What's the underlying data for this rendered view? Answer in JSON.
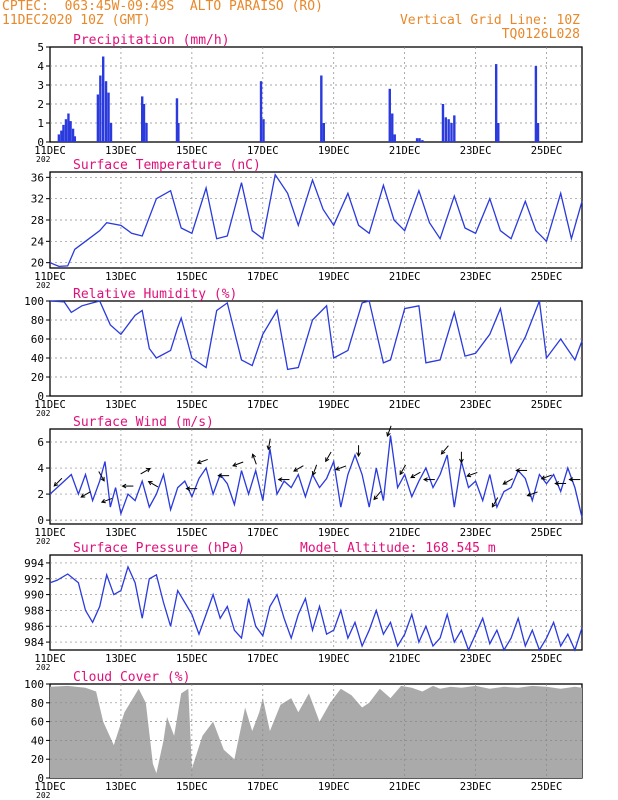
{
  "header": {
    "station_line": "CPTEC:  063:45W-09:49S  ALTO PARAISO (RO)",
    "date_line": "11DEC2020 10Z (GMT)",
    "grid_line": "Vertical Grid Line: 10Z",
    "code_line": "TQ0126L028"
  },
  "colors": {
    "series": "#2a3adc",
    "title": "#e0107a",
    "header": "#e8882a",
    "cloud": "#aaaaaa",
    "grid": "#888888"
  },
  "x_axis": {
    "ticks": [
      "11DEC",
      "13DEC",
      "15DEC",
      "17DEC",
      "19DEC",
      "21DEC",
      "23DEC",
      "25DEC"
    ],
    "tick_days": [
      0,
      2,
      4,
      6,
      8,
      10,
      12,
      14
    ],
    "year_fragment": "202",
    "range_days": [
      0,
      15
    ]
  },
  "chart_data": [
    {
      "type": "bar",
      "title": "Precipitation (mm/h)",
      "ylim": [
        0,
        5
      ],
      "yticks": [
        0,
        1,
        2,
        3,
        4,
        5
      ],
      "x_days": [
        0.25,
        0.32,
        0.38,
        0.45,
        0.52,
        0.58,
        0.65,
        0.7,
        1.35,
        1.42,
        1.5,
        1.58,
        1.65,
        1.72,
        2.6,
        2.65,
        2.72,
        3.58,
        3.62,
        5.95,
        6.02,
        7.65,
        7.72,
        9.58,
        9.65,
        9.72,
        10.35,
        10.42,
        10.5,
        11.08,
        11.16,
        11.24,
        11.32,
        11.4,
        12.58,
        12.64,
        13.7,
        13.76
      ],
      "values": [
        0.4,
        0.6,
        0.9,
        1.2,
        1.5,
        1.1,
        0.7,
        0.3,
        2.5,
        3.5,
        4.5,
        3.2,
        2.6,
        1.0,
        2.4,
        2.0,
        1.0,
        2.3,
        1.0,
        3.2,
        1.2,
        3.5,
        1.0,
        2.8,
        1.5,
        0.4,
        0.2,
        0.2,
        0.1,
        2.0,
        1.3,
        1.2,
        1.0,
        1.4,
        4.1,
        1.0,
        4.0,
        1.0
      ]
    },
    {
      "type": "line",
      "title": "Surface Temperature (nC)",
      "ylim": [
        19,
        37
      ],
      "yticks": [
        20,
        24,
        28,
        32,
        36
      ],
      "x_days": [
        0,
        0.25,
        0.5,
        0.7,
        1.0,
        1.4,
        1.6,
        2.0,
        2.3,
        2.6,
        3.0,
        3.4,
        3.7,
        4.0,
        4.4,
        4.7,
        5.0,
        5.4,
        5.7,
        6.0,
        6.35,
        6.7,
        7.0,
        7.4,
        7.7,
        8.0,
        8.4,
        8.7,
        9.0,
        9.4,
        9.7,
        10.0,
        10.4,
        10.7,
        11.0,
        11.4,
        11.7,
        12.0,
        12.4,
        12.7,
        13.0,
        13.4,
        13.7,
        14.0,
        14.4,
        14.7,
        15.0
      ],
      "values": [
        20.0,
        19.3,
        19.4,
        22.5,
        24.0,
        26.0,
        27.5,
        27.0,
        25.5,
        25.0,
        32.0,
        33.5,
        26.5,
        25.5,
        34.0,
        24.5,
        25.0,
        35.0,
        26.0,
        24.5,
        36.5,
        33.0,
        27.0,
        35.5,
        30.0,
        27.0,
        33.0,
        27.0,
        25.5,
        34.5,
        28.0,
        26.0,
        33.5,
        27.5,
        24.5,
        32.5,
        26.5,
        25.5,
        32.0,
        26.0,
        24.5,
        31.5,
        26.0,
        24.0,
        33.0,
        24.5,
        31.5
      ]
    },
    {
      "type": "line",
      "title": "Relative Humidity (%)",
      "ylim": [
        0,
        100
      ],
      "yticks": [
        0,
        20,
        40,
        60,
        80,
        100
      ],
      "x_days": [
        0,
        0.4,
        0.6,
        0.9,
        1.2,
        1.4,
        1.7,
        2.0,
        2.4,
        2.6,
        2.8,
        3.0,
        3.4,
        3.6,
        3.7,
        4.0,
        4.4,
        4.7,
        5.0,
        5.4,
        5.7,
        6.0,
        6.4,
        6.7,
        7.0,
        7.4,
        7.8,
        8.0,
        8.4,
        8.8,
        9.0,
        9.4,
        9.6,
        10.0,
        10.4,
        10.6,
        11.0,
        11.4,
        11.7,
        12.0,
        12.4,
        12.7,
        13.0,
        13.4,
        13.8,
        14.0,
        14.4,
        14.8,
        15.0
      ],
      "values": [
        100,
        99,
        88,
        95,
        98,
        100,
        75,
        65,
        85,
        90,
        50,
        40,
        48,
        72,
        82,
        40,
        30,
        90,
        98,
        38,
        32,
        65,
        90,
        28,
        30,
        80,
        95,
        40,
        48,
        98,
        100,
        35,
        38,
        92,
        95,
        35,
        38,
        88,
        42,
        45,
        65,
        92,
        35,
        62,
        100,
        40,
        60,
        38,
        58
      ]
    },
    {
      "type": "line",
      "title": "Surface Wind (m/s)",
      "ylim": [
        -0.3,
        7
      ],
      "yticks": [
        0,
        2,
        4,
        6
      ],
      "x_days": [
        0,
        0.2,
        0.4,
        0.6,
        0.8,
        1.0,
        1.2,
        1.4,
        1.55,
        1.7,
        1.85,
        2.0,
        2.2,
        2.4,
        2.6,
        2.8,
        3.0,
        3.2,
        3.4,
        3.6,
        3.8,
        4.0,
        4.2,
        4.4,
        4.6,
        4.8,
        5.0,
        5.2,
        5.4,
        5.6,
        5.8,
        6.0,
        6.2,
        6.4,
        6.6,
        6.8,
        7.0,
        7.2,
        7.4,
        7.6,
        7.8,
        8.0,
        8.2,
        8.4,
        8.6,
        8.8,
        9.0,
        9.2,
        9.4,
        9.6,
        9.8,
        10.0,
        10.2,
        10.4,
        10.6,
        10.8,
        11.0,
        11.2,
        11.4,
        11.6,
        11.8,
        12.0,
        12.2,
        12.4,
        12.6,
        12.8,
        13.0,
        13.2,
        13.4,
        13.6,
        13.8,
        14.0,
        14.2,
        14.4,
        14.6,
        14.8,
        15.0
      ],
      "values": [
        2.0,
        2.5,
        3.0,
        3.5,
        2.0,
        3.5,
        1.5,
        3.0,
        4.5,
        1.0,
        2.5,
        0.5,
        2.0,
        1.5,
        3.0,
        1.0,
        2.0,
        3.5,
        0.8,
        2.5,
        3.0,
        1.8,
        3.2,
        4.0,
        2.0,
        3.5,
        2.8,
        1.2,
        3.8,
        2.0,
        3.8,
        1.5,
        5.5,
        2.0,
        3.0,
        2.5,
        3.5,
        1.8,
        3.5,
        2.5,
        3.2,
        4.5,
        1.0,
        3.5,
        5.0,
        3.5,
        1.0,
        4.0,
        1.5,
        6.5,
        2.5,
        3.5,
        1.8,
        3.0,
        4.0,
        2.5,
        3.5,
        5.0,
        1.0,
        4.5,
        2.5,
        3.0,
        1.5,
        3.5,
        1.0,
        2.2,
        2.5,
        3.8,
        3.2,
        1.5,
        3.5,
        2.8,
        3.5,
        2.2,
        4.0,
        2.5,
        0.2
      ],
      "arrows_x_days": [
        0.3,
        1.1,
        1.4,
        1.7,
        2.3,
        2.6,
        3.0,
        4.1,
        4.4,
        5.0,
        5.4,
        5.8,
        6.2,
        6.7,
        7.1,
        7.5,
        7.9,
        8.3,
        8.7,
        9.3,
        9.6,
        10.0,
        10.4,
        10.8,
        11.2,
        11.6,
        12.0,
        12.6,
        13.0,
        13.4,
        13.7,
        14.1,
        14.5,
        14.9
      ],
      "arrows_angle_deg": [
        225,
        210,
        300,
        200,
        180,
        30,
        150,
        180,
        200,
        180,
        200,
        110,
        260,
        180,
        210,
        250,
        240,
        200,
        270,
        230,
        250,
        240,
        210,
        180,
        230,
        270,
        200,
        240,
        210,
        180,
        200,
        200,
        180,
        180
      ]
    },
    {
      "type": "line",
      "title": "Surface Pressure (hPa)",
      "subtitle": "Model Altitude: 168.545 m",
      "ylim": [
        983,
        995
      ],
      "yticks": [
        984,
        986,
        988,
        990,
        992,
        994
      ],
      "x_days": [
        0,
        0.2,
        0.5,
        0.8,
        1.0,
        1.2,
        1.4,
        1.6,
        1.8,
        2.0,
        2.2,
        2.4,
        2.6,
        2.8,
        3.0,
        3.2,
        3.4,
        3.6,
        3.8,
        4.0,
        4.2,
        4.4,
        4.6,
        4.8,
        5.0,
        5.2,
        5.4,
        5.6,
        5.8,
        6.0,
        6.2,
        6.4,
        6.6,
        6.8,
        7.0,
        7.2,
        7.4,
        7.6,
        7.8,
        8.0,
        8.2,
        8.4,
        8.6,
        8.8,
        9.0,
        9.2,
        9.4,
        9.6,
        9.8,
        10.0,
        10.2,
        10.4,
        10.6,
        10.8,
        11.0,
        11.2,
        11.4,
        11.6,
        11.8,
        12.0,
        12.2,
        12.4,
        12.6,
        12.8,
        13.0,
        13.2,
        13.4,
        13.6,
        13.8,
        14.0,
        14.2,
        14.4,
        14.6,
        14.8,
        15.0
      ],
      "values": [
        991.5,
        991.8,
        992.6,
        991.5,
        988.0,
        986.5,
        988.5,
        992.5,
        990.0,
        990.5,
        993.5,
        991.5,
        987.0,
        992.0,
        992.5,
        989.0,
        986.0,
        990.5,
        989.0,
        987.5,
        985.0,
        987.5,
        990.0,
        987.0,
        988.5,
        985.5,
        984.5,
        989.5,
        986.0,
        984.8,
        988.5,
        990.0,
        987.0,
        984.5,
        987.5,
        989.5,
        985.5,
        988.5,
        985.0,
        985.5,
        988.0,
        984.5,
        986.5,
        983.5,
        985.5,
        988.0,
        985.0,
        986.5,
        983.5,
        985.0,
        987.5,
        984.0,
        986.0,
        983.5,
        984.5,
        987.5,
        984.0,
        985.5,
        983.0,
        985.0,
        987.0,
        983.8,
        985.5,
        983.0,
        984.5,
        987.0,
        983.5,
        985.5,
        983.0,
        984.5,
        986.5,
        983.5,
        985.0,
        983.0,
        985.8
      ]
    },
    {
      "type": "area",
      "title": "Cloud Cover (%)",
      "ylim": [
        0,
        100
      ],
      "yticks": [
        0,
        20,
        40,
        60,
        80,
        100
      ],
      "x_days": [
        0,
        0.5,
        1.0,
        1.3,
        1.5,
        1.8,
        2.1,
        2.5,
        2.7,
        2.9,
        3.0,
        3.2,
        3.3,
        3.5,
        3.7,
        3.9,
        4.0,
        4.3,
        4.6,
        4.9,
        5.2,
        5.5,
        5.7,
        5.9,
        6.0,
        6.2,
        6.5,
        6.8,
        7.0,
        7.3,
        7.6,
        7.9,
        8.2,
        8.5,
        8.8,
        9.0,
        9.3,
        9.6,
        9.9,
        10.2,
        10.5,
        10.8,
        11.0,
        11.3,
        11.6,
        12.0,
        12.4,
        12.8,
        13.2,
        13.6,
        14.0,
        14.4,
        14.8,
        15.0
      ],
      "values": [
        97,
        98,
        96,
        92,
        60,
        35,
        70,
        95,
        80,
        15,
        5,
        40,
        65,
        45,
        90,
        95,
        10,
        45,
        60,
        30,
        20,
        75,
        50,
        70,
        85,
        50,
        78,
        85,
        70,
        90,
        60,
        80,
        95,
        88,
        75,
        80,
        95,
        85,
        98,
        96,
        92,
        98,
        95,
        97,
        96,
        98,
        95,
        97,
        96,
        98,
        97,
        95,
        97,
        96
      ]
    }
  ]
}
